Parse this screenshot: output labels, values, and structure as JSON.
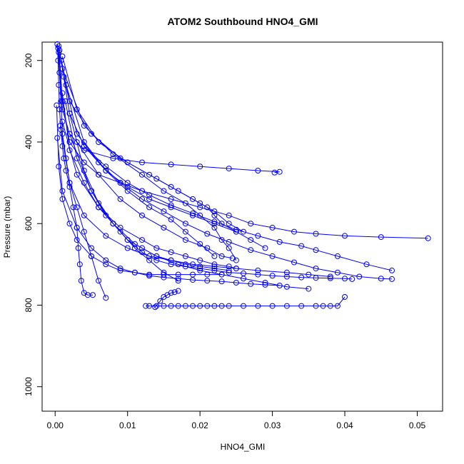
{
  "chart_data": {
    "type": "scatter",
    "title": "ATOM2 Southbound HNO4_GMI",
    "xlabel": "HNO4_GMI",
    "ylabel": "Pressure (mbar)",
    "xlim": [
      -0.0018,
      0.0535
    ],
    "ylim": [
      1060,
      155
    ],
    "y_reversed": true,
    "x_ticks": [
      "0.00",
      "0.01",
      "0.02",
      "0.03",
      "0.04",
      "0.05"
    ],
    "y_ticks": [
      "200",
      "400",
      "600",
      "800",
      "1000"
    ],
    "x_tick_values": [
      0,
      0.01,
      0.02,
      0.03,
      0.04,
      0.05
    ],
    "y_tick_values": [
      200,
      400,
      600,
      800,
      1000
    ],
    "grid": false,
    "color": "#0000ff",
    "marker": "open-circle",
    "connected": true,
    "series": [
      {
        "x": [
          0.0003,
          0.0004,
          0.0005,
          0.0006,
          0.0008,
          0.001,
          0.0012,
          0.0015,
          0.002,
          0.0025,
          0.003,
          0.0032,
          0.0034,
          0.0036,
          0.004,
          0.0045,
          0.0052
        ],
        "y": [
          160,
          200,
          260,
          320,
          370,
          410,
          440,
          470,
          510,
          560,
          610,
          660,
          700,
          740,
          770,
          775,
          775
        ]
      },
      {
        "x": [
          0.0004,
          0.0006,
          0.0008,
          0.001,
          0.0015,
          0.002,
          0.003,
          0.004,
          0.005,
          0.006,
          0.007
        ],
        "y": [
          170,
          230,
          300,
          380,
          440,
          500,
          560,
          620,
          680,
          740,
          782
        ]
      },
      {
        "x": [
          0.0005,
          0.001,
          0.002,
          0.004,
          0.006,
          0.009,
          0.012,
          0.016,
          0.02,
          0.024,
          0.027,
          0.03,
          0.033,
          0.036,
          0.04,
          0.045,
          0.0515
        ],
        "y": [
          165,
          300,
          400,
          450,
          480,
          500,
          520,
          540,
          560,
          580,
          600,
          610,
          620,
          625,
          630,
          633,
          636
        ]
      },
      {
        "x": [
          0.0005,
          0.001,
          0.002,
          0.004,
          0.008,
          0.012,
          0.016,
          0.02,
          0.024,
          0.028,
          0.031,
          0.0303
        ],
        "y": [
          180,
          320,
          380,
          420,
          440,
          450,
          455,
          460,
          465,
          470,
          473,
          475
        ]
      },
      {
        "x": [
          0.0006,
          0.002,
          0.005,
          0.009,
          0.013,
          0.016,
          0.019,
          0.021,
          0.022,
          0.023,
          0.025
        ],
        "y": [
          175,
          300,
          380,
          440,
          480,
          510,
          540,
          560,
          580,
          600,
          620
        ]
      },
      {
        "x": [
          0.001,
          0.003,
          0.006,
          0.01,
          0.014,
          0.017,
          0.02,
          0.022,
          0.024,
          0.026
        ],
        "y": [
          190,
          320,
          400,
          450,
          490,
          520,
          550,
          570,
          600,
          620
        ]
      },
      {
        "x": [
          0.0008,
          0.002,
          0.004,
          0.007,
          0.01,
          0.013,
          0.016,
          0.019,
          0.022,
          0.025,
          0.028,
          0.031,
          0.034,
          0.036,
          0.039,
          0.043,
          0.0465
        ],
        "y": [
          200,
          330,
          410,
          460,
          500,
          530,
          555,
          575,
          595,
          615,
          630,
          645,
          655,
          665,
          680,
          700,
          715
        ]
      },
      {
        "x": [
          0.001,
          0.004,
          0.008,
          0.012,
          0.015,
          0.018,
          0.02,
          0.022,
          0.023,
          0.024,
          0.025
        ],
        "y": [
          220,
          360,
          430,
          480,
          520,
          550,
          580,
          610,
          640,
          660,
          690
        ]
      },
      {
        "x": [
          0.0012,
          0.003,
          0.006,
          0.009,
          0.012,
          0.015,
          0.018,
          0.021,
          0.024,
          0.027,
          0.03,
          0.033,
          0.036,
          0.039,
          0.042,
          0.045,
          0.0465
        ],
        "y": [
          240,
          380,
          450,
          500,
          540,
          570,
          600,
          625,
          645,
          665,
          680,
          695,
          710,
          720,
          730,
          735,
          736
        ]
      },
      {
        "x": [
          0.0015,
          0.004,
          0.007,
          0.01,
          0.013,
          0.016,
          0.018,
          0.02,
          0.022
        ],
        "y": [
          260,
          400,
          470,
          520,
          560,
          590,
          620,
          650,
          680
        ]
      },
      {
        "x": [
          0.001,
          0.002,
          0.004,
          0.006,
          0.008,
          0.01,
          0.012,
          0.014,
          0.016,
          0.018,
          0.02,
          0.022,
          0.024,
          0.026,
          0.028,
          0.03,
          0.032,
          0.034,
          0.036,
          0.038,
          0.04,
          0.041
        ],
        "y": [
          280,
          420,
          500,
          560,
          600,
          640,
          670,
          690,
          700,
          705,
          710,
          715,
          720,
          722,
          725,
          728,
          730,
          732,
          733,
          734,
          735,
          736
        ]
      },
      {
        "x": [
          0.0014,
          0.003,
          0.005,
          0.007,
          0.009,
          0.011,
          0.013,
          0.015,
          0.017
        ],
        "y": [
          300,
          440,
          520,
          580,
          620,
          660,
          690,
          720,
          740
        ]
      },
      {
        "x": [
          0.0002,
          0.0005,
          0.001,
          0.002,
          0.003,
          0.005,
          0.007,
          0.009,
          0.011,
          0.013,
          0.015,
          0.017,
          0.019,
          0.021,
          0.023
        ],
        "y": [
          310,
          460,
          540,
          600,
          640,
          680,
          700,
          715,
          720,
          725,
          725,
          725,
          725,
          725,
          725
        ]
      },
      {
        "x": [
          0.002,
          0.004,
          0.006,
          0.008,
          0.01,
          0.012,
          0.014,
          0.016,
          0.018,
          0.02,
          0.022,
          0.024
        ],
        "y": [
          330,
          470,
          550,
          600,
          640,
          660,
          680,
          690,
          700,
          705,
          710,
          715
        ]
      },
      {
        "x": [
          0.0125,
          0.013,
          0.014,
          0.015,
          0.016,
          0.017,
          0.018,
          0.019,
          0.02,
          0.021,
          0.022,
          0.023,
          0.024,
          0.026,
          0.028,
          0.03,
          0.032,
          0.034,
          0.036,
          0.037,
          0.038,
          0.039,
          0.04
        ],
        "y": [
          802,
          802,
          802,
          802,
          802,
          802,
          802,
          802,
          802,
          802,
          802,
          802,
          802,
          802,
          802,
          802,
          802,
          802,
          802,
          802,
          802,
          802,
          780
        ]
      },
      {
        "x": [
          0.0138,
          0.0145,
          0.015,
          0.0155,
          0.016,
          0.0165,
          0.017
        ],
        "y": [
          805,
          790,
          780,
          775,
          770,
          768,
          765
        ]
      },
      {
        "x": [
          0.001,
          0.003,
          0.006,
          0.009,
          0.012,
          0.014,
          0.016,
          0.018,
          0.02,
          0.022,
          0.024,
          0.025
        ],
        "y": [
          350,
          480,
          560,
          610,
          640,
          660,
          670,
          680,
          690,
          700,
          705,
          710
        ]
      },
      {
        "x": [
          0.0007,
          0.002,
          0.004,
          0.007,
          0.01,
          0.013,
          0.016,
          0.019,
          0.022,
          0.025,
          0.028,
          0.032,
          0.035,
          0.038
        ],
        "y": [
          360,
          500,
          580,
          630,
          660,
          680,
          690,
          700,
          705,
          710,
          715,
          720,
          725,
          730
        ]
      },
      {
        "x": [
          0.002,
          0.005,
          0.008,
          0.011,
          0.014,
          0.017,
          0.02,
          0.023,
          0.026,
          0.029,
          0.032,
          0.035
        ],
        "y": [
          380,
          520,
          600,
          650,
          680,
          700,
          715,
          725,
          735,
          745,
          755,
          760
        ]
      },
      {
        "x": [
          0.0003,
          0.001,
          0.003,
          0.005,
          0.007,
          0.009,
          0.011,
          0.013,
          0.015,
          0.017,
          0.019,
          0.021,
          0.023,
          0.025,
          0.027,
          0.029,
          0.031
        ],
        "y": [
          390,
          520,
          610,
          660,
          690,
          710,
          720,
          728,
          732,
          735,
          738,
          740,
          742,
          745,
          748,
          750,
          752
        ]
      },
      {
        "x": [
          0.003,
          0.006,
          0.009,
          0.012,
          0.015,
          0.018,
          0.021,
          0.023,
          0.0245
        ],
        "y": [
          400,
          480,
          540,
          580,
          610,
          640,
          660,
          680,
          685
        ]
      },
      {
        "x": [
          0.004,
          0.007,
          0.01,
          0.013,
          0.016,
          0.019,
          0.022,
          0.025,
          0.027,
          0.029
        ],
        "y": [
          410,
          470,
          510,
          540,
          560,
          580,
          600,
          620,
          640,
          660
        ]
      }
    ]
  }
}
